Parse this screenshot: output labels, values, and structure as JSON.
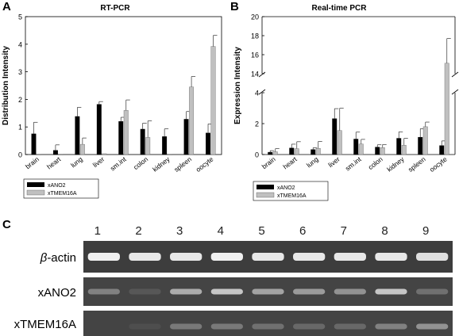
{
  "panels": {
    "a_letter": "A",
    "b_letter": "B",
    "c_letter": "C"
  },
  "chart_data": [
    {
      "type": "bar",
      "title": "RT-PCR",
      "ylabel": "Distribution Intensity",
      "xlabel": "",
      "ylim": [
        0,
        5
      ],
      "yticks": [
        0,
        1,
        2,
        3,
        4,
        5
      ],
      "categories": [
        "brain",
        "heart",
        "lung",
        "liver",
        "sm.int",
        "colon",
        "kidney",
        "spleen",
        "oocyte"
      ],
      "series": [
        {
          "name": "xANO2",
          "color": "#000000",
          "values": [
            0.75,
            0.15,
            1.38,
            1.82,
            1.2,
            0.92,
            0.65,
            1.28,
            0.78
          ],
          "errors": [
            0.42,
            0.2,
            0.33,
            0.1,
            0.15,
            0.22,
            0.28,
            0.28,
            0.33
          ]
        },
        {
          "name": "xTMEM16A",
          "color": "#c0c0c0",
          "values": [
            0.0,
            0.0,
            0.37,
            0.03,
            1.6,
            0.62,
            0.0,
            2.45,
            3.92
          ],
          "errors": [
            0.0,
            0.0,
            0.23,
            0.0,
            0.38,
            0.6,
            0.0,
            0.38,
            0.4
          ]
        }
      ],
      "legend_position": "bottom-left"
    },
    {
      "type": "bar",
      "title": "Real-time PCR",
      "ylabel": "Expression Intensity",
      "xlabel": "",
      "broken_axis": true,
      "yticks_lower": [
        0,
        2,
        4
      ],
      "yticks_upper": [
        14,
        16,
        18,
        20
      ],
      "categories": [
        "brain",
        "heart",
        "lung",
        "liver",
        "sm.int",
        "colon",
        "kidney",
        "spleen",
        "oocyte"
      ],
      "series": [
        {
          "name": "xANO2",
          "color": "#000000",
          "values": [
            0.15,
            0.42,
            0.32,
            2.32,
            1.0,
            0.48,
            1.05,
            1.12,
            0.58
          ],
          "errors": [
            0.1,
            0.25,
            0.12,
            0.65,
            0.45,
            0.15,
            0.42,
            0.55,
            0.3
          ]
        },
        {
          "name": "xTMEM16A",
          "color": "#c0c0c0",
          "values": [
            0.18,
            0.38,
            0.4,
            1.55,
            0.68,
            0.45,
            0.6,
            1.8,
            15.1
          ],
          "errors": [
            0.2,
            0.45,
            0.45,
            1.45,
            0.3,
            0.2,
            0.45,
            0.3,
            2.6
          ]
        }
      ],
      "legend_position": "bottom-left"
    }
  ],
  "gel": {
    "lanes": [
      "1",
      "2",
      "3",
      "4",
      "5",
      "6",
      "7",
      "8",
      "9"
    ],
    "rows": [
      {
        "label_prefix": "β",
        "label_suffix": "-actin",
        "band_strengths": [
          1,
          0.95,
          0.95,
          1,
          0.95,
          0.95,
          0.95,
          0.95,
          0.9
        ]
      },
      {
        "label_prefix": "",
        "label_suffix": "xANO2",
        "band_strengths": [
          0.35,
          0.1,
          0.6,
          0.75,
          0.55,
          0.5,
          0.45,
          0.75,
          0.25
        ]
      },
      {
        "label_prefix": "",
        "label_suffix": "xTMEM16A",
        "band_strengths": [
          0.0,
          0.05,
          0.3,
          0.3,
          0.25,
          0.2,
          0.2,
          0.35,
          0.45
        ]
      }
    ]
  }
}
